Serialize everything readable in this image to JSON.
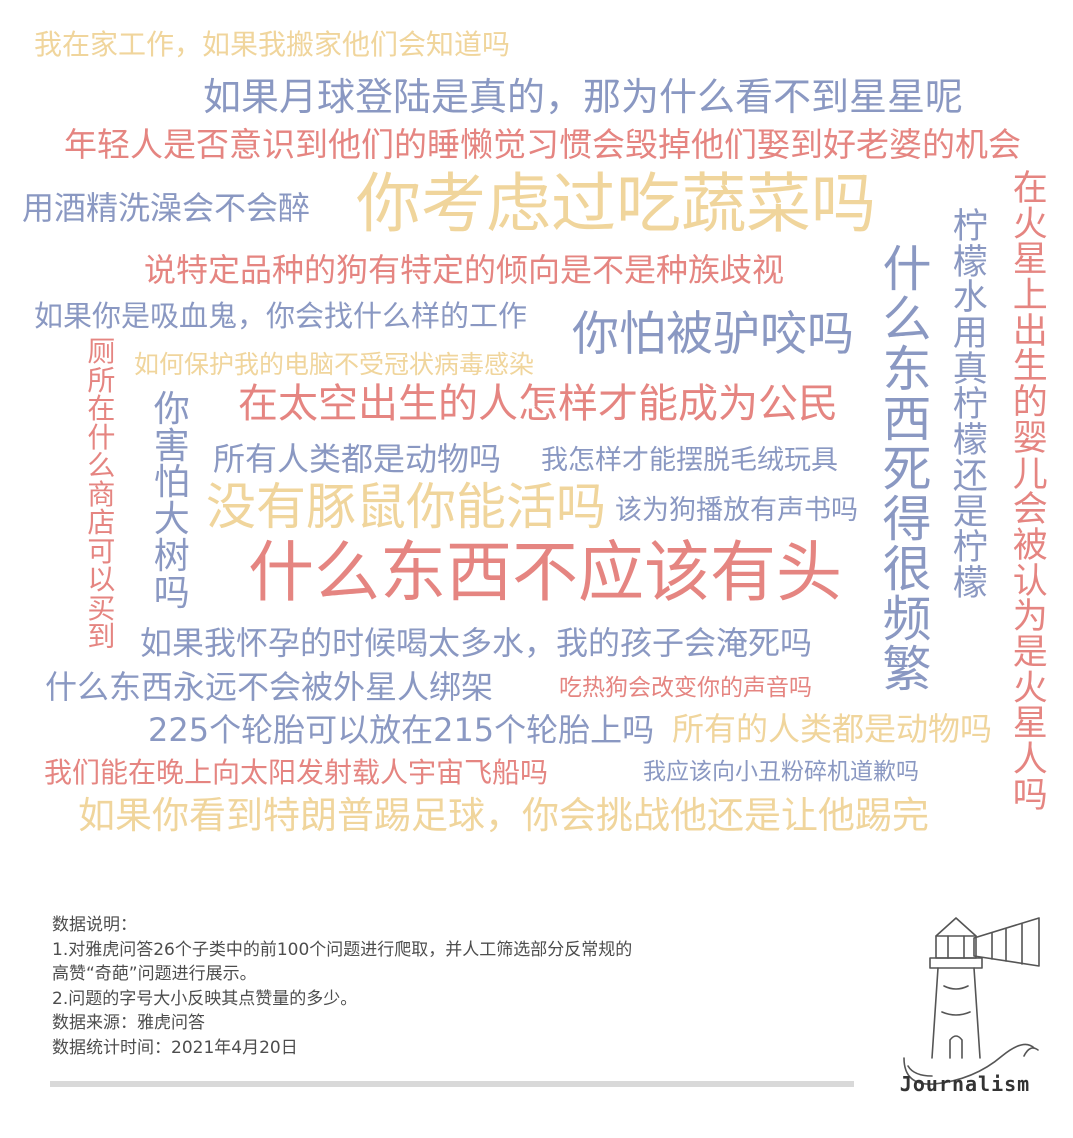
{
  "word_cloud": {
    "q01": "我在家工作，如果我搬家他们会知道吗",
    "q02": "如果月球登陆是真的，那为什么看不到星星呢",
    "q03": "年轻人是否意识到他们的睡懒觉习惯会毁掉他们娶到好老婆的机会",
    "q04": "用酒精洗澡会不会醉",
    "q05": "你考虑过吃蔬菜吗",
    "q06": "说特定品种的狗有特定的倾向是不是种族歧视",
    "q07": "如果你是吸血鬼，你会找什么样的工作",
    "q08": "你怕被驴咬吗",
    "q09": "如何保护我的电脑不受冠状病毒感染",
    "q10": "在太空出生的人怎样才能成为公民",
    "q11": "所有人类都是动物吗",
    "q12": "我怎样才能摆脱毛绒玩具",
    "q13": "没有豚鼠你能活吗",
    "q14": "该为狗播放有声书吗",
    "q15": "什么东西不应该有头",
    "q16": "如果我怀孕的时候喝太多水，我的孩子会淹死吗",
    "q17": "什么东西永远不会被外星人绑架",
    "q18": "吃热狗会改变你的声音吗",
    "q19": "225个轮胎可以放在215个轮胎上吗",
    "q20": "所有的人类都是动物吗",
    "q21": "我们能在晚上向太阳发射载人宇宙飞船吗",
    "q22": "我应该向小丑粉碎机道歉吗",
    "q23": "如果你看到特朗普踢足球，你会挑战他还是让他踢完",
    "v1": "厕所在什么商店可以买到",
    "v2": "你害怕大树吗",
    "v3": "什么东西死得很频繁",
    "v4": "柠檬水用真柠檬还是柠檬",
    "v5": "在火星上出生的婴儿会被认为是火星人吗"
  },
  "notes": {
    "line1": "数据说明：",
    "line2": "1.对雅虎问答26个子类中的前100个问题进行爬取，并人工筛选部分反常规的",
    "line3": "高赞“奇葩”问题进行展示。",
    "line4": "2.问题的字号大小反映其点赞量的多少。",
    "line5": "数据来源：雅虎问答",
    "line6": "数据统计时间：2021年4月20日"
  },
  "logo": {
    "wordmark": "Journalism"
  },
  "colors": {
    "yellow": "#f0d59c",
    "blue": "#8a98c2",
    "red": "#e58581",
    "note_text": "#4d4d4d"
  }
}
